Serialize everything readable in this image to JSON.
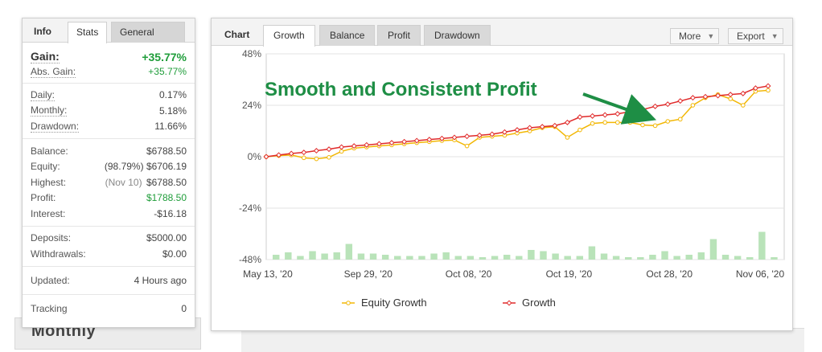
{
  "info_panel": {
    "tabs": {
      "title": "Info",
      "stats": "Stats",
      "general": "General"
    },
    "gain": {
      "label": "Gain:",
      "value": "+35.77%"
    },
    "abs_gain": {
      "label": "Abs. Gain:",
      "value": "+35.77%"
    },
    "daily": {
      "label": "Daily:",
      "value": "0.17%"
    },
    "monthly": {
      "label": "Monthly:",
      "value": "5.18%"
    },
    "drawdown": {
      "label": "Drawdown:",
      "value": "11.66%"
    },
    "balance": {
      "label": "Balance:",
      "value": "$6788.50"
    },
    "equity": {
      "label": "Equity:",
      "pct": "(98.79%)",
      "value": "$6706.19"
    },
    "highest": {
      "label": "Highest:",
      "date": "(Nov 10)",
      "value": "$6788.50"
    },
    "profit": {
      "label": "Profit:",
      "value": "$1788.50"
    },
    "interest": {
      "label": "Interest:",
      "value": "-$16.18"
    },
    "deposits": {
      "label": "Deposits:",
      "value": "$5000.00"
    },
    "withdrawals": {
      "label": "Withdrawals:",
      "value": "$0.00"
    },
    "updated": {
      "label": "Updated:",
      "value": "4 Hours ago"
    },
    "tracking": {
      "label": "Tracking",
      "value": "0"
    }
  },
  "background": {
    "monthly_label": "Monthly"
  },
  "chart_panel": {
    "tabs": {
      "title": "Chart",
      "growth": "Growth",
      "balance": "Balance",
      "profit": "Profit",
      "drawdown": "Drawdown"
    },
    "more": "More",
    "export": "Export"
  },
  "annotation": "Smooth and Consistent Profit",
  "colors": {
    "equity": "#f2b705",
    "growth": "#e02a2a",
    "bars": "#b9e3b9",
    "gain_green": "#1f9d3a",
    "annotation_green": "#1e8e45"
  },
  "chart_data": {
    "type": "line",
    "yticks": [
      "48%",
      "24%",
      "0%",
      "-24%",
      "-48%"
    ],
    "ylim": [
      -48,
      48
    ],
    "xtick_labels": [
      "May 13, '20",
      "Sep 29, '20",
      "Oct 08, '20",
      "Oct 19, '20",
      "Oct 28, '20",
      "Nov 06, '20"
    ],
    "legend": [
      "Equity Growth",
      "Growth"
    ],
    "legend_position": "bottom",
    "series": [
      {
        "name": "Equity Growth",
        "values": [
          0,
          0.5,
          0.8,
          -0.5,
          -1,
          -0.3,
          2.5,
          4.0,
          4.5,
          5.0,
          5.5,
          6.0,
          6.5,
          7.0,
          7.5,
          7.8,
          5.0,
          9.0,
          9.5,
          10.0,
          11.0,
          12.0,
          13.5,
          14.0,
          9.0,
          12.5,
          15.5,
          16.0,
          16.0,
          16.0,
          14.8,
          14.5,
          16.5,
          17.5,
          24.0,
          27.5,
          29.0,
          27.0,
          24.0,
          30.5,
          31.0
        ]
      },
      {
        "name": "Growth",
        "values": [
          0,
          0.8,
          1.5,
          2.0,
          2.8,
          3.5,
          4.5,
          5.0,
          5.5,
          6.0,
          6.5,
          7.0,
          7.5,
          8.0,
          8.5,
          9.0,
          9.5,
          10.0,
          10.5,
          11.5,
          12.5,
          13.5,
          14.0,
          14.5,
          16.0,
          18.5,
          19.0,
          19.5,
          20.0,
          21.0,
          22.0,
          23.5,
          24.5,
          26.0,
          27.5,
          28.0,
          28.5,
          29.0,
          29.5,
          32.0,
          33.0
        ]
      }
    ],
    "bars": [
      2,
      3,
      1.5,
      3.5,
      2.5,
      3,
      6.5,
      2.5,
      2.5,
      2,
      1.5,
      1.5,
      1.5,
      2.5,
      3,
      1.5,
      1.5,
      1,
      1.5,
      2,
      1.5,
      4,
      3.5,
      2.5,
      1.5,
      1.5,
      5.5,
      2.5,
      1.5,
      1,
      1,
      2,
      3.5,
      1.5,
      2,
      3,
      8.5,
      2,
      1.5,
      1,
      11.5,
      1
    ]
  }
}
